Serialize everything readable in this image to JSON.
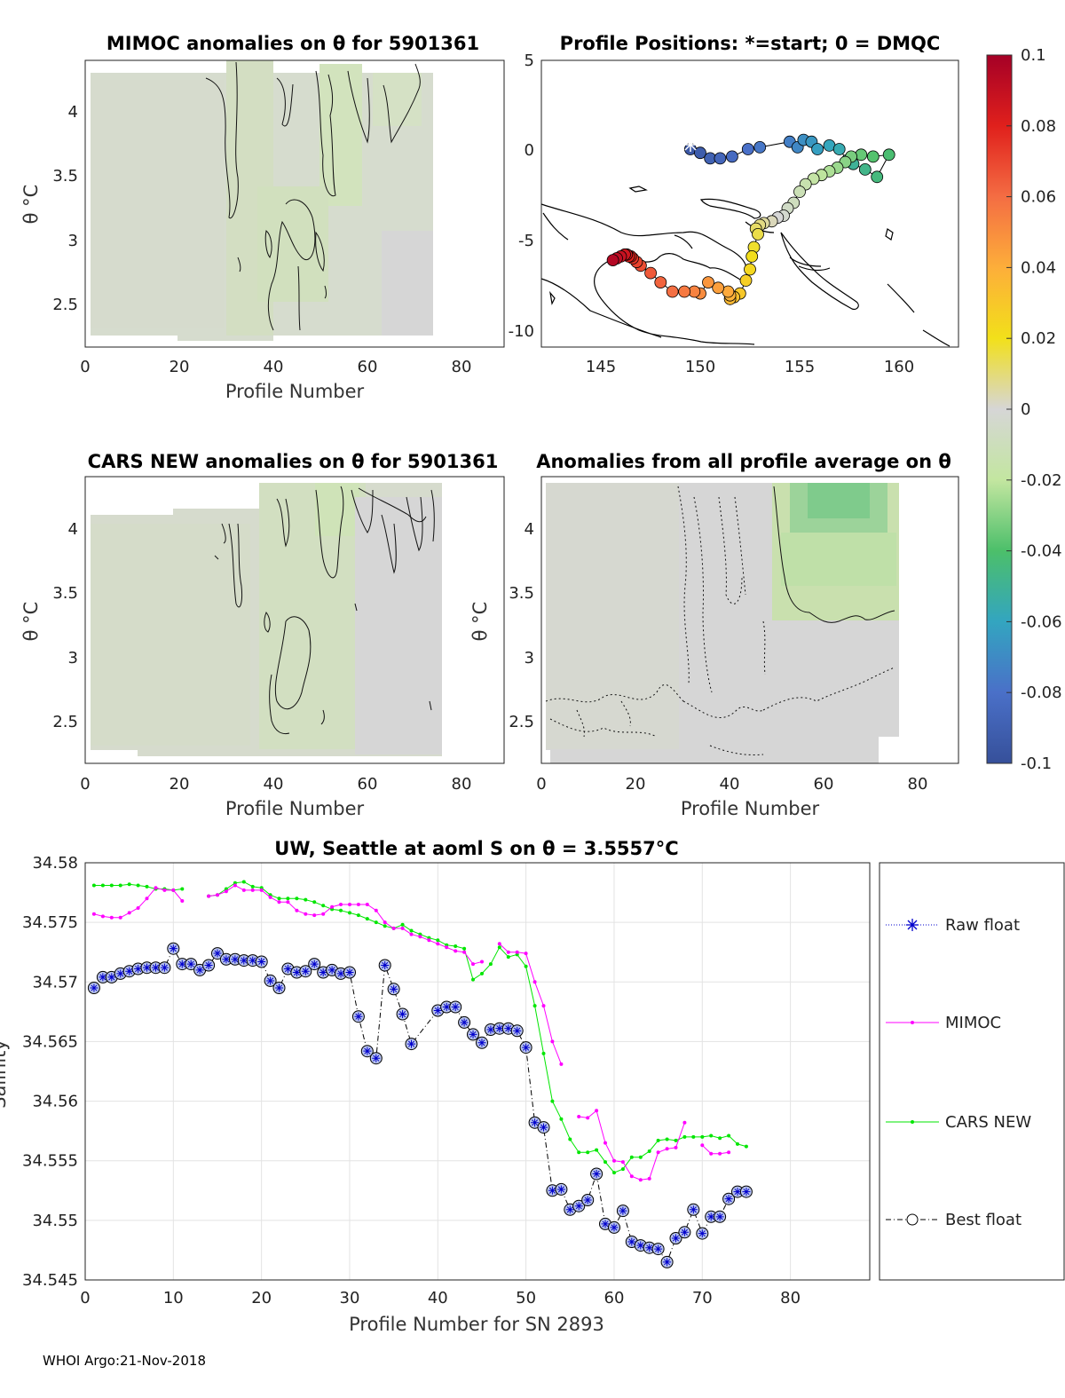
{
  "footer": "WHOI Argo:21-Nov-2018",
  "colors": {
    "mimoc": "#ff00ff",
    "cars": "#00e600",
    "best": "#000000",
    "raw": "#0000cc",
    "anomaly_fill": "#dbe8c8",
    "land": "#000000"
  },
  "chart_data": [
    {
      "id": "mimoc_anom",
      "type": "heatmap",
      "title": "MIMOC anomalies on θ  for 5901361",
      "xlabel": "Profile Number",
      "ylabel": "θ °C",
      "xlim": [
        0,
        89
      ],
      "ylim": [
        2.15,
        4.38
      ],
      "xticks": [
        0,
        20,
        40,
        60,
        80
      ],
      "yticks": [
        2.5,
        3,
        3.5,
        4
      ],
      "xticklabels": [
        "0",
        "20",
        "40",
        "60",
        "80"
      ],
      "yticklabels": [
        "2.5",
        "3",
        "3.5",
        "4"
      ]
    },
    {
      "id": "positions",
      "type": "scatter",
      "title": "Profile Positions: *=start; 0 = DMQC",
      "xlim": [
        142,
        163
      ],
      "ylim": [
        -10.5,
        5
      ],
      "xticks": [
        145,
        150,
        155,
        160
      ],
      "yticks": [
        -10,
        -5,
        0,
        5
      ],
      "xticklabels": [
        "145",
        "150",
        "155",
        "160"
      ],
      "yticklabels": [
        "-10",
        "-5",
        "0",
        "5"
      ],
      "lon": [
        149.5,
        150.0,
        150.5,
        151.0,
        151.6,
        152.4,
        153.0,
        154.5,
        154.9,
        155.2,
        155.6,
        155.9,
        156.5,
        157.0,
        157.4,
        157.7,
        158.3,
        158.9,
        159.5,
        158.7,
        158.1,
        157.6,
        157.3,
        156.9,
        156.5,
        156.1,
        155.7,
        155.3,
        155.0,
        154.7,
        154.4,
        154.2,
        153.9,
        153.6,
        153.2,
        153.0,
        152.8,
        152.9,
        152.7,
        152.6,
        152.5,
        152.3,
        152.0,
        151.7,
        151.5,
        151.5,
        151.4,
        150.9,
        150.4,
        150.0,
        149.7,
        149.2,
        148.6,
        148.0,
        147.5,
        147.0,
        146.8,
        146.6,
        146.5,
        146.4,
        146.3,
        146.2,
        146.0,
        145.8,
        145.6
      ],
      "lat": [
        0.2,
        0.0,
        -0.3,
        -0.3,
        -0.2,
        0.2,
        0.3,
        0.6,
        0.3,
        0.7,
        0.6,
        0.2,
        0.4,
        0.2,
        -0.4,
        -0.6,
        -0.9,
        -1.3,
        -0.1,
        -0.2,
        -0.1,
        -0.2,
        -0.5,
        -0.8,
        -1.0,
        -1.2,
        -1.4,
        -1.7,
        -2.1,
        -2.7,
        -3.0,
        -3.4,
        -3.5,
        -3.7,
        -3.8,
        -3.9,
        -4.1,
        -4.4,
        -5.1,
        -5.6,
        -6.3,
        -6.9,
        -7.6,
        -7.8,
        -7.9,
        -7.7,
        -7.5,
        -7.3,
        -7.0,
        -7.6,
        -7.5,
        -7.5,
        -7.5,
        -7.0,
        -6.5,
        -6.1,
        -5.9,
        -5.7,
        -5.6,
        -5.6,
        -5.5,
        -5.5,
        -5.6,
        -5.7,
        -5.8
      ],
      "colorbar": {
        "min": -0.1,
        "max": 0.1,
        "ticklabels": [
          "0.1",
          "0.08",
          "0.06",
          "0.04",
          "0.02",
          "0",
          "-0.02",
          "-0.04",
          "-0.06",
          "-0.08",
          "-0.1"
        ]
      }
    },
    {
      "id": "cars_anom",
      "type": "heatmap",
      "title": "CARS NEW anomalies on θ for 5901361",
      "xlabel": "Profile Number",
      "ylabel": "θ °C",
      "xlim": [
        0,
        89
      ],
      "ylim": [
        2.15,
        4.38
      ],
      "xticks": [
        0,
        20,
        40,
        60,
        80
      ],
      "yticks": [
        2.5,
        3,
        3.5,
        4
      ],
      "xticklabels": [
        "0",
        "20",
        "40",
        "60",
        "80"
      ],
      "yticklabels": [
        "2.5",
        "3",
        "3.5",
        "4"
      ]
    },
    {
      "id": "profile_avg_anom",
      "type": "heatmap",
      "title": "Anomalies from all profile average on θ",
      "xlabel": "Profile Number",
      "ylabel": "θ °C",
      "xlim": [
        0,
        89
      ],
      "ylim": [
        2.15,
        4.38
      ],
      "xticks": [
        0,
        20,
        40,
        60,
        80
      ],
      "yticks": [
        2.5,
        3,
        3.5,
        4
      ],
      "xticklabels": [
        "0",
        "20",
        "40",
        "60",
        "80"
      ],
      "yticklabels": [
        "2.5",
        "3",
        "3.5",
        "4"
      ]
    },
    {
      "id": "salinity",
      "type": "line",
      "title": "UW, Seattle at aoml S on θ = 3.5557°C",
      "xlabel": "Profile Number for SN 2893",
      "ylabel": "Salinity",
      "xlim": [
        0,
        89
      ],
      "ylim": [
        34.545,
        34.58
      ],
      "xticks": [
        0,
        10,
        20,
        30,
        40,
        50,
        60,
        70,
        80
      ],
      "yticks": [
        34.545,
        34.55,
        34.555,
        34.56,
        34.565,
        34.57,
        34.575,
        34.58
      ],
      "xticklabels": [
        "0",
        "10",
        "20",
        "30",
        "40",
        "50",
        "60",
        "70",
        "80"
      ],
      "yticklabels": [
        "34.545",
        "34.55",
        "34.555",
        "34.56",
        "34.565",
        "34.57",
        "34.575",
        "34.58"
      ],
      "legend": [
        "Raw float",
        "MIMOC",
        "CARS NEW",
        "Best float"
      ],
      "series": [
        {
          "name": "Best float",
          "x": [
            1,
            2,
            3,
            4,
            5,
            6,
            7,
            8,
            9,
            10,
            11,
            12,
            13,
            14,
            15,
            16,
            17,
            18,
            19,
            20,
            21,
            22,
            23,
            24,
            25,
            26,
            27,
            28,
            29,
            30,
            31,
            32,
            33,
            34,
            35,
            36,
            37,
            40,
            41,
            42,
            43,
            44,
            45,
            46,
            47,
            48,
            49,
            50,
            51,
            52,
            53,
            54,
            55,
            56,
            57,
            58,
            59,
            60,
            61,
            62,
            63,
            64,
            65,
            66,
            67,
            68,
            69,
            70,
            71,
            72,
            73,
            74,
            75
          ],
          "y": [
            34.5695,
            34.5704,
            34.5704,
            34.5707,
            34.5709,
            34.5711,
            34.5712,
            34.5712,
            34.5712,
            34.5728,
            34.5715,
            34.5715,
            34.571,
            34.5714,
            34.5724,
            34.5719,
            34.5719,
            34.5718,
            34.5718,
            34.5717,
            34.5701,
            34.5695,
            34.5711,
            34.5708,
            34.5709,
            34.5715,
            34.5708,
            34.571,
            34.5707,
            34.5708,
            34.5671,
            34.5642,
            34.5636,
            34.5714,
            34.5694,
            34.5673,
            34.5648,
            34.5676,
            34.5679,
            34.5679,
            34.5666,
            34.5656,
            34.5649,
            34.566,
            34.5661,
            34.5661,
            34.5659,
            34.5645,
            34.5582,
            34.5578,
            34.5525,
            34.5526,
            34.5509,
            34.5512,
            34.5517,
            34.5539,
            34.5497,
            34.5494,
            34.5508,
            34.5482,
            34.5479,
            34.5477,
            34.5476,
            34.5465,
            34.5485,
            34.549,
            34.5509,
            34.5489,
            34.5503,
            34.5503,
            34.5518,
            34.5524,
            34.5524
          ]
        },
        {
          "name": "MIMOC",
          "x": [
            1,
            2,
            3,
            4,
            5,
            6,
            7,
            8,
            9,
            10,
            11,
            null,
            14,
            15,
            16,
            17,
            18,
            19,
            20,
            21,
            22,
            23,
            24,
            25,
            26,
            27,
            28,
            29,
            30,
            31,
            32,
            33,
            34,
            35,
            36,
            37,
            38,
            39,
            40,
            41,
            42,
            43,
            44,
            45,
            null,
            47,
            48,
            49,
            50,
            51,
            52,
            53,
            54,
            null,
            56,
            57,
            58,
            59,
            60,
            61,
            62,
            63,
            64,
            65,
            66,
            67,
            68,
            null,
            70,
            71,
            72,
            73
          ],
          "y": [
            34.5757,
            34.5755,
            34.5754,
            34.5754,
            34.5758,
            34.5762,
            34.577,
            34.5779,
            34.5777,
            34.5777,
            34.5768,
            null,
            34.5772,
            34.5773,
            34.5776,
            34.5781,
            34.5777,
            34.5777,
            34.5777,
            34.5771,
            34.5767,
            34.5767,
            34.576,
            34.5757,
            34.5756,
            34.5757,
            34.5763,
            34.5765,
            34.5765,
            34.5765,
            34.5765,
            34.576,
            34.575,
            34.5745,
            34.5745,
            34.574,
            34.5738,
            34.5735,
            34.5732,
            34.5729,
            34.5726,
            34.5725,
            34.5715,
            34.5717,
            null,
            34.5732,
            34.5725,
            34.5725,
            34.5724,
            34.57,
            34.568,
            34.565,
            34.5631,
            null,
            34.5587,
            34.5586,
            34.5592,
            34.5565,
            34.555,
            34.5549,
            34.5537,
            34.5534,
            34.5535,
            34.5557,
            34.556,
            34.5561,
            34.5582,
            null,
            34.5563,
            34.5556,
            34.5556,
            34.5557
          ]
        },
        {
          "name": "CARS NEW",
          "x": [
            1,
            2,
            3,
            4,
            5,
            6,
            7,
            8,
            9,
            10,
            11,
            null,
            14,
            15,
            16,
            17,
            18,
            19,
            20,
            21,
            22,
            23,
            24,
            25,
            26,
            27,
            28,
            29,
            30,
            31,
            32,
            33,
            34,
            35,
            36,
            37,
            38,
            39,
            40,
            41,
            42,
            43,
            44,
            45,
            46,
            47,
            48,
            49,
            50,
            51,
            52,
            53,
            54,
            55,
            56,
            57,
            58,
            59,
            60,
            61,
            62,
            63,
            64,
            65,
            66,
            67,
            68,
            69,
            70,
            71,
            72,
            73,
            74,
            75
          ],
          "y": [
            34.5781,
            34.5781,
            34.5781,
            34.5781,
            34.5782,
            34.5781,
            34.578,
            34.5778,
            34.5778,
            34.5777,
            34.5778,
            null,
            34.5772,
            34.5773,
            34.5778,
            34.5783,
            34.5784,
            34.578,
            34.5779,
            34.5773,
            34.577,
            34.577,
            34.577,
            34.5769,
            34.5767,
            34.5764,
            34.5761,
            34.576,
            34.5758,
            34.5756,
            34.5753,
            34.575,
            34.5747,
            34.5745,
            34.5748,
            34.5743,
            34.574,
            34.5737,
            34.5735,
            34.5731,
            34.573,
            34.5728,
            34.5702,
            34.5707,
            34.5715,
            34.5729,
            34.5721,
            34.5723,
            34.5713,
            34.568,
            34.564,
            34.56,
            34.5585,
            34.5568,
            34.5557,
            34.5557,
            34.5559,
            34.5549,
            34.554,
            34.5543,
            34.5553,
            34.5553,
            34.5558,
            34.5567,
            34.5568,
            34.5567,
            34.557,
            34.557,
            34.557,
            34.5571,
            34.5569,
            34.5571,
            34.5564,
            34.5562
          ]
        }
      ]
    }
  ]
}
